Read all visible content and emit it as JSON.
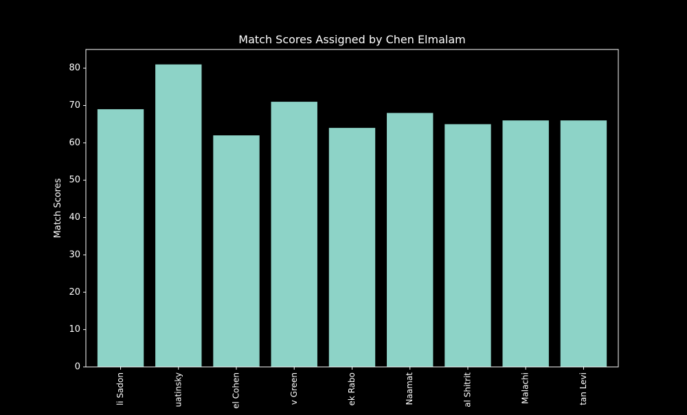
{
  "chart_data": {
    "type": "bar",
    "title": "Match Scores Assigned by Chen Elmalam",
    "xlabel": "",
    "ylabel": "Match Scores",
    "categories": [
      "li Sadon",
      "uatinsky",
      "el Cohen",
      "v Green",
      "ek Rabo",
      "Naamat",
      "al Shitrit",
      "Malachi",
      "tan Levi"
    ],
    "values": [
      69,
      81,
      62,
      71,
      64,
      68,
      65,
      66,
      66
    ],
    "ylim": [
      0,
      85
    ],
    "yticks": [
      0,
      10,
      20,
      30,
      40,
      50,
      60,
      70,
      80
    ],
    "grid": false,
    "colors": {
      "background": "#000000",
      "bar": "#8dd3c7",
      "axis": "#ffffff",
      "text": "#ffffff"
    }
  }
}
